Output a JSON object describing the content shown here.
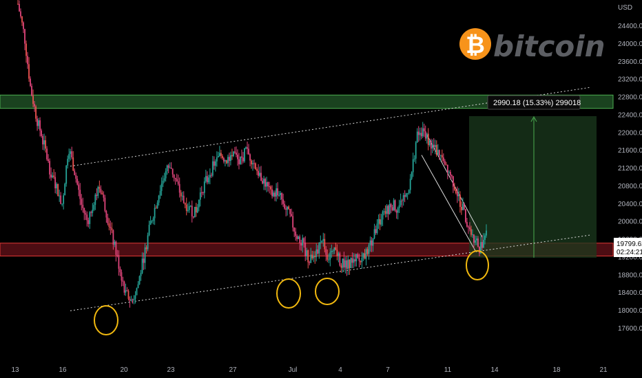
{
  "chart_data": {
    "type": "candlestick",
    "instrument": "bitcoin",
    "currency": "USD",
    "ylim": [
      17400,
      24800
    ],
    "y_ticks": [
      24400,
      24000,
      23600,
      23200,
      22800,
      22400,
      22000,
      21600,
      21200,
      20800,
      20400,
      20000,
      19600,
      19200,
      18800,
      18400,
      18000,
      17600
    ],
    "x_ticks": [
      "13",
      "16",
      "20",
      "23",
      "27",
      "Jul",
      "4",
      "7",
      "11",
      "14",
      "18",
      "21"
    ],
    "price_path": [
      [
        24900,
        24200,
        23000,
        22300,
        21800
      ],
      [
        21200,
        20800,
        20400,
        21700,
        21100,
        20400,
        20000,
        20500
      ],
      [
        20800,
        20200,
        19600,
        19000,
        18400,
        18200,
        18600
      ],
      [
        19300,
        20000,
        20500,
        21000,
        21300,
        20900,
        20500,
        20300,
        20200
      ],
      [
        20700,
        21000,
        21300,
        21500,
        21400,
        21600,
        21300,
        21600,
        21400
      ],
      [
        21100,
        20900,
        20600,
        20700,
        20400,
        20100,
        19700,
        19500
      ],
      [
        19100,
        19300,
        19600,
        19200,
        19300,
        19100,
        19000,
        19200,
        19100
      ],
      [
        19300,
        19600,
        20000,
        20200,
        20400,
        20300,
        20500,
        20900,
        21900,
        22100
      ],
      [
        21800,
        21600,
        21500,
        21200,
        20800,
        20400,
        20000,
        19600,
        19400,
        19800
      ]
    ],
    "last_price": "19799.62",
    "countdown": "02:24:21",
    "measure_label": "2990.18 (15.33%) 299018",
    "zones": [
      {
        "kind": "resistance",
        "low": 22550,
        "high": 22850,
        "color": "#1e4d25"
      },
      {
        "kind": "support",
        "low": 19230,
        "high": 19520,
        "color": "#5a0f16"
      }
    ],
    "channel": {
      "upper": [
        [
          102,
          21250
        ],
        [
          856,
          23020
        ]
      ],
      "lower": [
        [
          102,
          18000
        ],
        [
          856,
          19700
        ]
      ]
    },
    "colors": {
      "up": "#26a69a",
      "down": "#ef5350",
      "pink": "#e0457b"
    }
  },
  "logo": {
    "text": "bitcoin",
    "symbol": "₿"
  }
}
